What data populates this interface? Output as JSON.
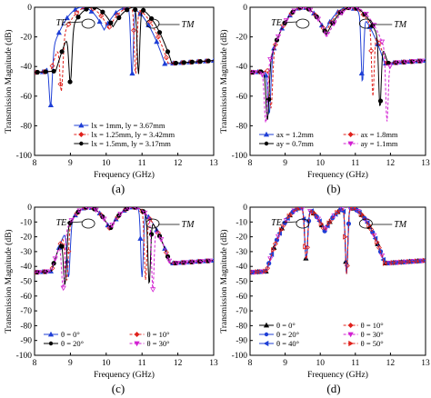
{
  "chart_data": [
    {
      "panel": "(a)",
      "type": "line",
      "xlabel": "Frequency (GHz)",
      "ylabel": "Transmission Magnitude (dB)",
      "xlim": [
        8,
        13
      ],
      "ylim": [
        -100,
        0
      ],
      "xticks": [
        "8",
        "9",
        "10",
        "11",
        "12",
        "13"
      ],
      "yticks": [
        "0",
        "-20",
        "-40",
        "-60",
        "-80",
        "-100"
      ],
      "annotations": [
        "TE",
        "TM"
      ],
      "legend_position": "lower-center",
      "series": [
        {
          "name": "lx = 1mm, ly = 3.67mm",
          "color": "#1f3fd6",
          "marker": "triangle",
          "te_peak": 9.33,
          "tm_peak": 10.6,
          "te_null": 8.45,
          "tm_null": 10.72
        },
        {
          "name": "lx = 1.25mm, ly = 3.42mm",
          "color": "#e0201b",
          "marker": "diamond",
          "te_peak": 9.48,
          "tm_peak": 10.7,
          "te_null": 8.75,
          "tm_null": 10.82
        },
        {
          "name": "lx = 1.5mm, ly = 3.17mm",
          "color": "#000000",
          "marker": "circle",
          "te_peak": 9.62,
          "tm_peak": 10.8,
          "te_null": 9.0,
          "tm_null": 10.9
        }
      ]
    },
    {
      "panel": "(b)",
      "type": "line",
      "xlabel": "Frequency (GHz)",
      "ylabel": "Transmission Magnitude (dB)",
      "xlim": [
        8,
        13
      ],
      "ylim": [
        -100,
        0
      ],
      "xticks": [
        "8",
        "9",
        "10",
        "11",
        "12",
        "13"
      ],
      "yticks": [
        "0",
        "-20",
        "-40",
        "-60",
        "-80",
        "-100"
      ],
      "annotations": [
        "TE",
        "TM"
      ],
      "legend_position": "lower-center",
      "series": [
        {
          "name": "ax = 1.2mm",
          "color": "#1f3fd6",
          "marker": "triangle",
          "te_peak": 9.5,
          "tm_peak": 10.8,
          "te_null": 8.55,
          "tm_null": 11.2
        },
        {
          "name": "ax = 1.8mm",
          "color": "#e0201b",
          "marker": "diamond",
          "te_peak": 9.5,
          "tm_peak": 10.85,
          "te_null": 8.6,
          "tm_null": 11.5
        },
        {
          "name": "ay = 0.7mm",
          "color": "#000000",
          "marker": "circle",
          "te_peak": 9.5,
          "tm_peak": 10.9,
          "te_null": 8.5,
          "tm_null": 11.7
        },
        {
          "name": "ay = 1.1mm",
          "color": "#d21fd2",
          "marker": "triangle-down",
          "te_peak": 9.5,
          "tm_peak": 10.95,
          "te_null": 8.45,
          "tm_null": 11.9
        }
      ]
    },
    {
      "panel": "(c)",
      "type": "line",
      "xlabel": "Frequency (GHz)",
      "ylabel": "Transmission Magnitude (dB)",
      "xlim": [
        8,
        13
      ],
      "ylim": [
        -100,
        0
      ],
      "xticks": [
        "8",
        "9",
        "10",
        "11",
        "12",
        "13"
      ],
      "yticks": [
        "0",
        "-10",
        "-20",
        "-30",
        "-40",
        "-50",
        "-60",
        "-70",
        "-80",
        "-90",
        "-100"
      ],
      "annotations": [
        "TE",
        "TM"
      ],
      "legend_position": "lower-center",
      "series": [
        {
          "name": "θ = 0°",
          "color": "#1f3fd6",
          "marker": "triangle",
          "te_peak": 9.5,
          "tm_peak": 10.75,
          "te_null": 8.95,
          "tm_null": 11.0
        },
        {
          "name": "θ = 10°",
          "color": "#e0201b",
          "marker": "diamond",
          "te_peak": 9.5,
          "tm_peak": 10.75,
          "te_null": 8.9,
          "tm_null": 11.1
        },
        {
          "name": "θ = 20°",
          "color": "#000000",
          "marker": "circle",
          "te_peak": 9.5,
          "tm_peak": 10.75,
          "te_null": 8.85,
          "tm_null": 11.2
        },
        {
          "name": "θ = 30°",
          "color": "#d21fd2",
          "marker": "triangle-down",
          "te_peak": 9.5,
          "tm_peak": 10.75,
          "te_null": 8.8,
          "tm_null": 11.3
        }
      ]
    },
    {
      "panel": "(d)",
      "type": "line",
      "xlabel": "Frequency (GHz)",
      "ylabel": "Transmission Magnitude (dB)",
      "xlim": [
        8,
        13
      ],
      "ylim": [
        -100,
        0
      ],
      "xticks": [
        "8",
        "9",
        "10",
        "11",
        "12",
        "13"
      ],
      "yticks": [
        "0",
        "-10",
        "-20",
        "-30",
        "-40",
        "-50",
        "-60",
        "-70",
        "-80",
        "-90",
        "-100"
      ],
      "annotations": [
        "TE",
        "TM"
      ],
      "legend_position": "lower-center",
      "series": [
        {
          "name": "θ = 0°",
          "color": "#000000",
          "marker": "triangle",
          "te_peak": 9.5,
          "tm_peak": 10.8,
          "te_null": 9.6,
          "tm_null": 10.75
        },
        {
          "name": "θ = 10°",
          "color": "#e0201b",
          "marker": "diamond",
          "te_peak": 9.5,
          "tm_peak": 10.8,
          "te_null": 9.6,
          "tm_null": 10.75
        },
        {
          "name": "θ = 20°",
          "color": "#1f3fd6",
          "marker": "circle",
          "te_peak": 9.5,
          "tm_peak": 10.8,
          "te_null": 9.6,
          "tm_null": 10.75
        },
        {
          "name": "θ = 30°",
          "color": "#d21fd2",
          "marker": "triangle-down",
          "te_peak": 9.5,
          "tm_peak": 10.8,
          "te_null": 9.6,
          "tm_null": 10.75
        },
        {
          "name": "θ = 40°",
          "color": "#1f3fd6",
          "marker": "triangle-left",
          "te_peak": 9.5,
          "tm_peak": 10.8,
          "te_null": 9.6,
          "tm_null": 10.75
        },
        {
          "name": "θ = 50°",
          "color": "#e0201b",
          "marker": "triangle-right",
          "te_peak": 9.5,
          "tm_peak": 10.8,
          "te_null": 9.6,
          "tm_null": 10.75
        }
      ]
    }
  ]
}
